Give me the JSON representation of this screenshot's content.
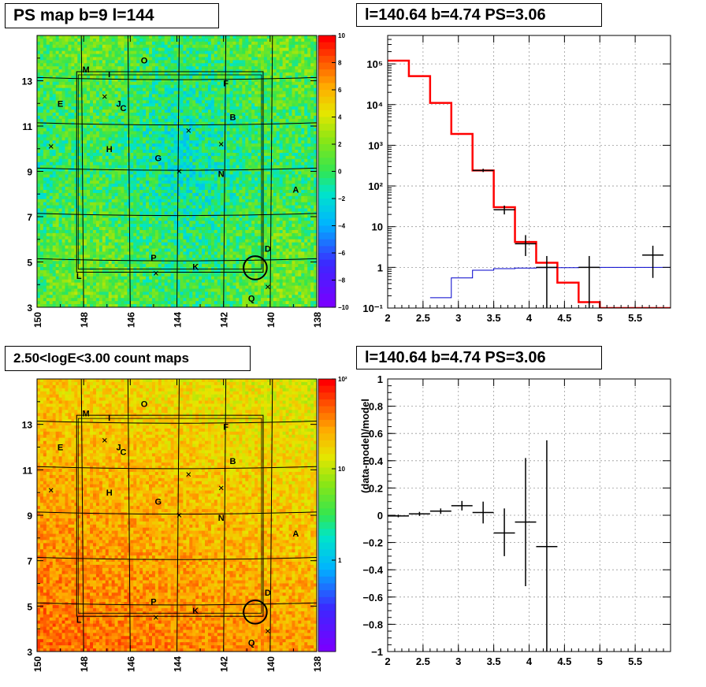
{
  "panels": {
    "ps_map": {
      "title": "PS map b=9 l=144",
      "x_ticks": [
        "150",
        "148",
        "146",
        "144",
        "142",
        "140",
        "138"
      ],
      "y_ticks": [
        "13",
        "11",
        "9",
        "7",
        "5",
        "3"
      ],
      "colorbar_ticks": [
        "10",
        "8",
        "6",
        "4",
        "2",
        "0",
        "−2",
        "−4",
        "−6",
        "−8",
        "−10"
      ]
    },
    "count_map": {
      "title": "2.50<logE<3.00 count maps",
      "x_ticks": [
        "150",
        "148",
        "146",
        "144",
        "142",
        "140",
        "138"
      ],
      "y_ticks": [
        "13",
        "11",
        "9",
        "7",
        "5",
        "3"
      ],
      "colorbar_ticks": [
        "10²",
        "10",
        "1"
      ]
    },
    "spectrum": {
      "title": "l=140.64 b=4.74 PS=3.06"
    },
    "residual": {
      "title": "l=140.64 b=4.74 PS=3.06"
    }
  },
  "map_labels": [
    {
      "text": "M",
      "l": 147.9,
      "b": 13.5
    },
    {
      "text": "I",
      "l": 146.9,
      "b": 13.3
    },
    {
      "text": "O",
      "l": 145.4,
      "b": 13.9
    },
    {
      "text": "F",
      "l": 141.9,
      "b": 12.9
    },
    {
      "text": "E",
      "l": 149.0,
      "b": 12.0
    },
    {
      "text": "J",
      "l": 146.5,
      "b": 12.0
    },
    {
      "text": "C",
      "l": 146.3,
      "b": 11.8
    },
    {
      "text": "B",
      "l": 141.6,
      "b": 11.4
    },
    {
      "text": "H",
      "l": 146.9,
      "b": 10.0
    },
    {
      "text": "G",
      "l": 144.8,
      "b": 9.6
    },
    {
      "text": "N",
      "l": 142.1,
      "b": 8.9
    },
    {
      "text": "A",
      "l": 138.9,
      "b": 8.2
    },
    {
      "text": "D",
      "l": 140.1,
      "b": 5.6
    },
    {
      "text": "P",
      "l": 145.0,
      "b": 5.2
    },
    {
      "text": "K",
      "l": 143.2,
      "b": 4.8
    },
    {
      "text": "L",
      "l": 148.2,
      "b": 4.4
    },
    {
      "text": "Q",
      "l": 140.8,
      "b": 3.4
    }
  ],
  "map_crosses": [
    {
      "l": 147.1,
      "b": 12.3
    },
    {
      "l": 149.4,
      "b": 10.1
    },
    {
      "l": 143.5,
      "b": 10.8
    },
    {
      "l": 142.1,
      "b": 10.2
    },
    {
      "l": 143.9,
      "b": 9.0
    },
    {
      "l": 144.9,
      "b": 4.5
    },
    {
      "l": 140.1,
      "b": 3.9
    }
  ],
  "map_circle": {
    "l": 140.64,
    "b": 4.74,
    "r_deg": 0.5
  },
  "chart_data": [
    {
      "type": "heatmap",
      "panel": "ps_map",
      "title": "PS map b=9 l=144",
      "x_range": [
        150,
        138
      ],
      "y_range": [
        3,
        15
      ],
      "z_range": [
        -10,
        10
      ],
      "colormap": "rainbow"
    },
    {
      "type": "line",
      "panel": "spectrum",
      "title": "l=140.64 b=4.74 PS=3.06",
      "xlim": [
        2,
        6
      ],
      "ylim": [
        0.1,
        500000
      ],
      "yscale": "log",
      "x_ticks": [
        2,
        2.5,
        3,
        3.5,
        4,
        4.5,
        5,
        5.5
      ],
      "y_ticks": [
        0.1,
        1,
        10,
        100,
        1000,
        10000,
        100000
      ],
      "y_tick_labels": [
        "10⁻¹",
        "1",
        "10",
        "10²",
        "10³",
        "10⁴",
        "10⁵"
      ],
      "grid": true,
      "model_total": {
        "edges": [
          2.0,
          2.3,
          2.6,
          2.9,
          3.2,
          3.5,
          3.8,
          4.1,
          4.4,
          4.7,
          5.0,
          5.3,
          6.0
        ],
        "values": [
          120000,
          50000,
          11000,
          1900,
          240,
          30,
          4.2,
          1.3,
          0.42,
          0.14,
          0.1,
          0.1
        ]
      },
      "model_source": {
        "edges": [
          2.6,
          2.9,
          3.2,
          3.5,
          3.8,
          4.1,
          4.4,
          4.7,
          5.0,
          5.3,
          6.0
        ],
        "values": [
          0.18,
          0.55,
          0.85,
          0.93,
          0.96,
          0.98,
          0.98,
          1.0,
          1.0,
          1.0
        ]
      },
      "data_points": [
        {
          "x": 3.35,
          "xerr": 0.15,
          "y": 240,
          "ylo": 220,
          "yhi": 265
        },
        {
          "x": 3.65,
          "xerr": 0.15,
          "y": 26,
          "ylo": 20,
          "yhi": 33
        },
        {
          "x": 3.95,
          "xerr": 0.15,
          "y": 3.8,
          "ylo": 1.9,
          "yhi": 6.2
        },
        {
          "x": 4.25,
          "xerr": 0.15,
          "y": 1.0,
          "ylo": 0.1,
          "yhi": 1.9
        },
        {
          "x": 4.85,
          "xerr": 0.15,
          "y": 1.0,
          "ylo": 0.1,
          "yhi": 1.9
        },
        {
          "x": 5.75,
          "xerr": 0.15,
          "y": 2.0,
          "ylo": 0.55,
          "yhi": 3.4
        }
      ]
    },
    {
      "type": "heatmap",
      "panel": "count_map",
      "title": "2.50<logE<3.00 count maps",
      "x_range": [
        150,
        138
      ],
      "y_range": [
        3,
        15
      ],
      "z_range": [
        0.1,
        100
      ],
      "zscale": "log",
      "colormap": "rainbow"
    },
    {
      "type": "scatter",
      "panel": "residual",
      "title": "l=140.64 b=4.74 PS=3.06",
      "ylabel": "(data-model)/model",
      "xlim": [
        2,
        6
      ],
      "ylim": [
        -1,
        1
      ],
      "x_ticks": [
        2,
        2.5,
        3,
        3.5,
        4,
        4.5,
        5,
        5.5
      ],
      "y_ticks": [
        -1,
        -0.8,
        -0.6,
        -0.4,
        -0.2,
        0,
        0.2,
        0.4,
        0.6,
        0.8,
        1
      ],
      "grid": true,
      "points": [
        {
          "x": 2.15,
          "xerr": 0.15,
          "y": -0.005,
          "yerr": 0.01
        },
        {
          "x": 2.45,
          "xerr": 0.15,
          "y": 0.01,
          "yerr": 0.015
        },
        {
          "x": 2.75,
          "xerr": 0.15,
          "y": 0.03,
          "yerr": 0.02
        },
        {
          "x": 3.05,
          "xerr": 0.15,
          "y": 0.07,
          "yerr": 0.035
        },
        {
          "x": 3.35,
          "xerr": 0.15,
          "y": 0.02,
          "yerr": 0.08
        },
        {
          "x": 3.65,
          "xerr": 0.15,
          "y": -0.13,
          "ylo": -0.3,
          "yhi": 0.05
        },
        {
          "x": 3.95,
          "xerr": 0.15,
          "y": -0.05,
          "ylo": -0.52,
          "yhi": 0.42
        },
        {
          "x": 4.25,
          "xerr": 0.15,
          "y": -0.23,
          "ylo": -1.0,
          "yhi": 0.55
        }
      ]
    }
  ]
}
